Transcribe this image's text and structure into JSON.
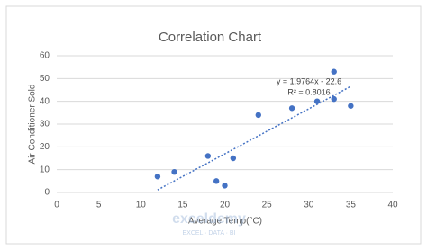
{
  "chart_data": {
    "type": "scatter",
    "title": "Correlation Chart",
    "x_label": "Average Temp(°C)",
    "y_label": "Air Conditioner Sold",
    "x": [
      12,
      14,
      18,
      19,
      20,
      21,
      24,
      28,
      31,
      33,
      33,
      35
    ],
    "series": [
      {
        "name": "Air Conditioner Sold",
        "color": "#4472c4",
        "values": [
          7,
          9,
          16,
          5,
          3,
          15,
          34,
          37,
          40,
          53,
          41,
          38
        ]
      }
    ],
    "xlim": [
      0,
      40
    ],
    "xticks": [
      0,
      5,
      10,
      15,
      20,
      25,
      30,
      35,
      40
    ],
    "ylim": [
      0,
      60
    ],
    "yticks": [
      0,
      10,
      20,
      30,
      40,
      50,
      60
    ],
    "grid": true,
    "trendline": {
      "slope": 1.9764,
      "intercept": -22.6,
      "color": "#4472c4",
      "equation_label": "y = 1.9764x - 22.6",
      "r2_label": "R² = 0.8016"
    },
    "watermark": "exceldemy",
    "watermark_sub": "EXCEL · DATA · BI"
  }
}
